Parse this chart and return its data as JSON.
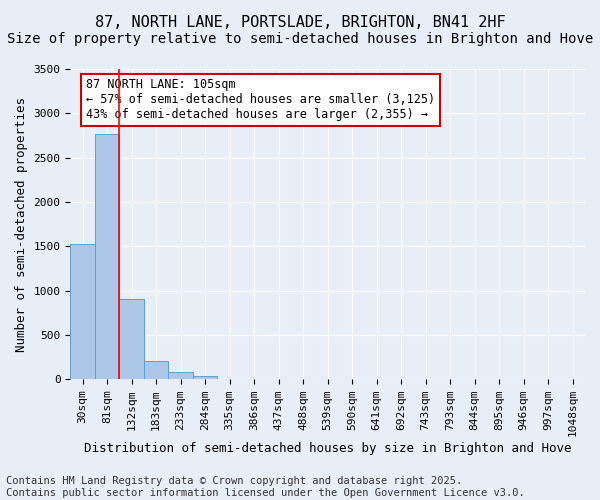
{
  "title": "87, NORTH LANE, PORTSLADE, BRIGHTON, BN41 2HF",
  "subtitle": "Size of property relative to semi-detached houses in Brighton and Hove",
  "xlabel": "Distribution of semi-detached houses by size in Brighton and Hove",
  "ylabel": "Number of semi-detached properties",
  "footer_line1": "Contains HM Land Registry data © Crown copyright and database right 2025.",
  "footer_line2": "Contains public sector information licensed under the Open Government Licence v3.0.",
  "annotation_title": "87 NORTH LANE: 105sqm",
  "annotation_line2": "← 57% of semi-detached houses are smaller (3,125)",
  "annotation_line3": "43% of semi-detached houses are larger (2,355) →",
  "bin_labels": [
    "30sqm",
    "81sqm",
    "132sqm",
    "183sqm",
    "233sqm",
    "284sqm",
    "335sqm",
    "386sqm",
    "437sqm",
    "488sqm",
    "539sqm",
    "590sqm",
    "641sqm",
    "692sqm",
    "743sqm",
    "793sqm",
    "844sqm",
    "895sqm",
    "946sqm",
    "997sqm",
    "1048sqm"
  ],
  "bar_values": [
    1530,
    2770,
    910,
    205,
    80,
    35,
    0,
    0,
    0,
    0,
    0,
    0,
    0,
    0,
    0,
    0,
    0,
    0,
    0,
    0,
    0
  ],
  "bar_color": "#aec6e8",
  "bar_edge_color": "#5a9fd4",
  "red_line_x": 1.5,
  "ylim": [
    0,
    3500
  ],
  "yticks": [
    0,
    500,
    1000,
    1500,
    2000,
    2500,
    3000,
    3500
  ],
  "bg_color": "#e8eef8",
  "plot_bg_color": "#e8eef8",
  "grid_color": "#ffffff",
  "annotation_box_color": "#ffffff",
  "annotation_box_edge": "#cc0000",
  "title_fontsize": 11,
  "subtitle_fontsize": 10,
  "axis_label_fontsize": 9,
  "tick_fontsize": 8,
  "annotation_fontsize": 8.5,
  "footer_fontsize": 7.5
}
